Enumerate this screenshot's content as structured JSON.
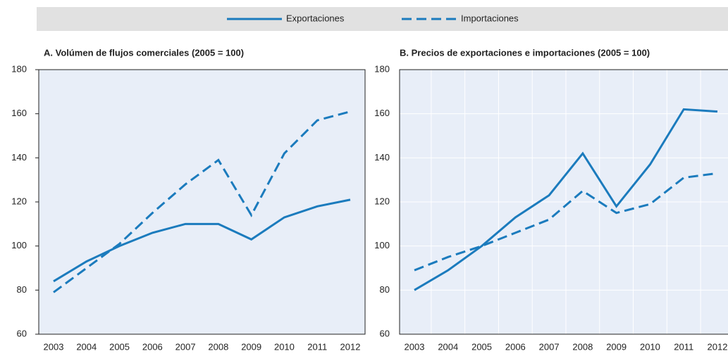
{
  "chart_data": [
    {
      "type": "line",
      "title": "A. Volúmen de flujos comerciales (2005 = 100)",
      "categories": [
        "2003",
        "2004",
        "2005",
        "2006",
        "2007",
        "2008",
        "2009",
        "2010",
        "2011",
        "2012"
      ],
      "series": [
        {
          "name": "Exportaciones",
          "color": "#1b7bbd",
          "dash": false,
          "values": [
            84,
            93,
            100,
            106,
            110,
            110,
            103,
            113,
            118,
            121
          ]
        },
        {
          "name": "Importaciones",
          "color": "#1b7bbd",
          "dash": true,
          "values": [
            79,
            90,
            101,
            115,
            128,
            139,
            114,
            142,
            157,
            161
          ]
        }
      ],
      "ylim": [
        60,
        180
      ],
      "yticks": [
        60,
        80,
        100,
        120,
        140,
        160,
        180
      ],
      "grid": false
    },
    {
      "type": "line",
      "title": "B. Precios de exportaciones e importaciones (2005 = 100)",
      "categories": [
        "2003",
        "2004",
        "2005",
        "2006",
        "2007",
        "2008",
        "2009",
        "2010",
        "2011",
        "2012"
      ],
      "series": [
        {
          "color": "#1b7bbd",
          "dash": false,
          "values": [
            80,
            89,
            100,
            113,
            123,
            142,
            118,
            137,
            162,
            161
          ]
        },
        {
          "color": "#1b7bbd",
          "dash": true,
          "values": [
            89,
            95,
            100,
            106,
            112,
            125,
            115,
            119,
            131,
            133
          ]
        }
      ],
      "ylim": [
        60,
        180
      ],
      "yticks": [
        60,
        80,
        100,
        120,
        140,
        160,
        180
      ],
      "grid": true
    }
  ]
}
